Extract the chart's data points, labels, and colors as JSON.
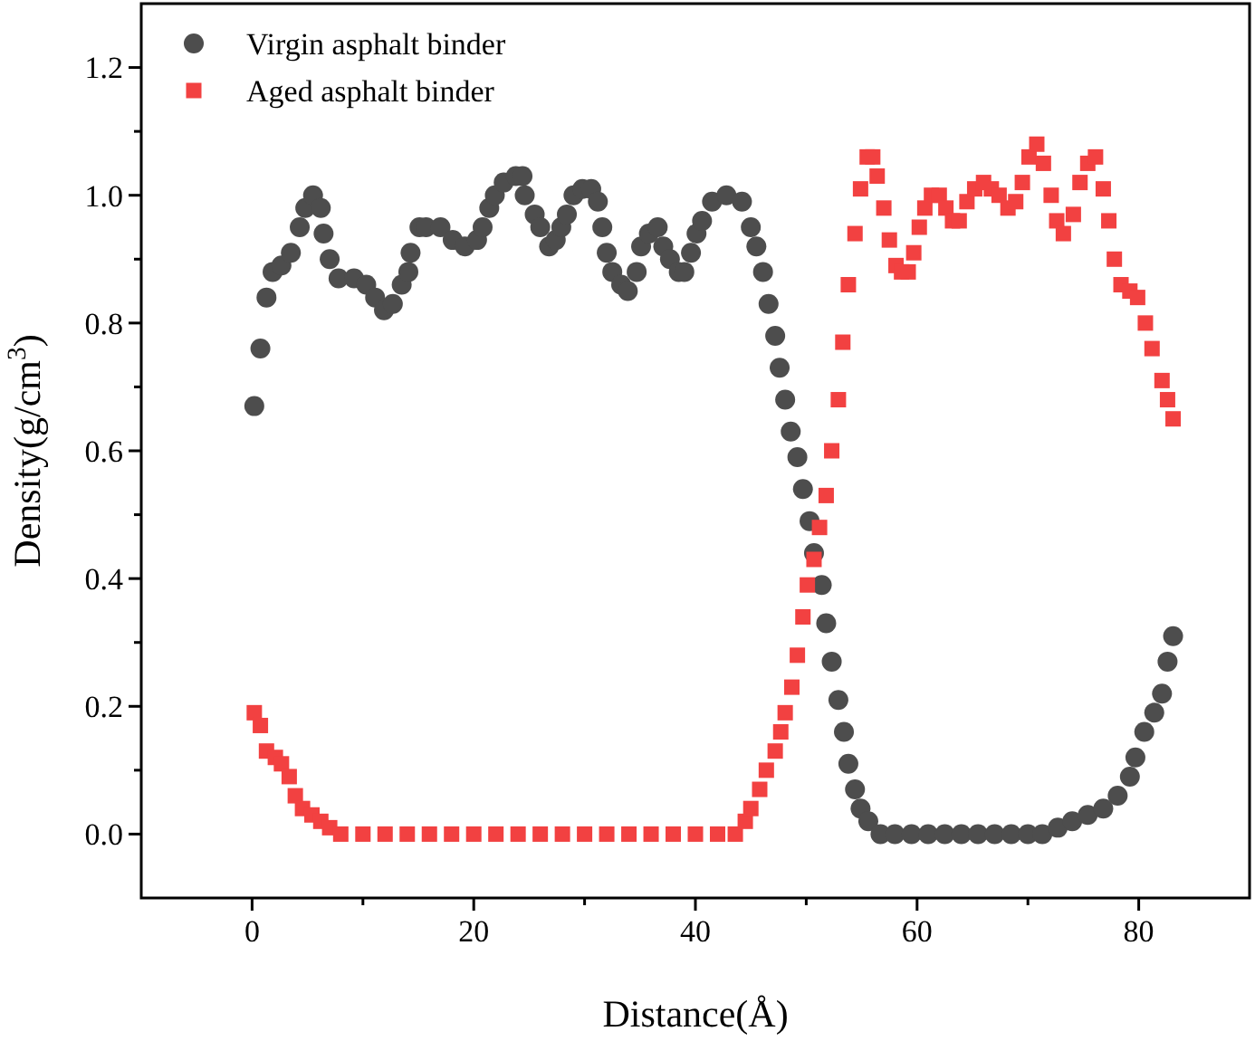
{
  "chart_data": {
    "type": "scatter",
    "xlabel": "Distance(Å)",
    "ylabel": "Density(g/cm$^{3}$)",
    "xlim": [
      -10,
      90
    ],
    "xticks": [
      0,
      20,
      40,
      60,
      80
    ],
    "ylim": [
      -0.1,
      1.3
    ],
    "yticks": [
      {
        "value": 0,
        "label": "0.0"
      },
      {
        "value": 0.2,
        "label": "0.2"
      },
      {
        "value": 0.4,
        "label": "0.4"
      },
      {
        "value": 0.6,
        "label": "0.6"
      },
      {
        "value": 0.8,
        "label": "0.8"
      },
      {
        "value": 1,
        "label": "1.0"
      },
      {
        "value": 1.2,
        "label": "1.2"
      }
    ],
    "grid": false,
    "legend": "top left",
    "series": [
      {
        "name": "Virgin asphalt binder",
        "color": "#4d4d4d",
        "marker": "circle",
        "x": [
          0.2,
          0.75,
          1.3,
          1.85,
          2.65,
          3.5,
          4.3,
          4.8,
          5.5,
          6.2,
          6.45,
          7.0,
          7.8,
          9.2,
          10.3,
          11.1,
          11.9,
          12.7,
          13.5,
          14.1,
          14.3,
          15.1,
          15.7,
          17.0,
          18.1,
          19.2,
          20.3,
          20.8,
          21.4,
          21.9,
          22.7,
          23.8,
          24.4,
          24.6,
          25.5,
          26.0,
          26.8,
          27.4,
          27.9,
          28.4,
          29.0,
          29.8,
          30.6,
          31.2,
          31.6,
          32.0,
          32.5,
          33.3,
          33.9,
          34.7,
          35.1,
          35.8,
          36.6,
          37.1,
          37.7,
          38.5,
          39.0,
          39.6,
          40.1,
          40.6,
          41.5,
          42.8,
          44.2,
          45.0,
          45.5,
          46.1,
          46.6,
          47.2,
          47.6,
          48.1,
          48.6,
          49.2,
          49.7,
          50.3,
          50.7,
          51.4,
          51.8,
          52.3,
          52.9,
          53.4,
          53.8,
          54.4,
          54.9,
          55.6,
          56.7,
          58,
          59.5,
          61,
          62.5,
          64,
          65.5,
          67,
          68.5,
          70,
          71.3,
          72.7,
          74.0,
          75.4,
          76.8,
          78.1,
          79.2,
          79.7,
          80.5,
          81.4,
          82.1,
          82.6,
          83.1
        ],
        "values": [
          0.67,
          0.76,
          0.84,
          0.88,
          0.89,
          0.91,
          0.95,
          0.98,
          1.0,
          0.98,
          0.94,
          0.9,
          0.87,
          0.87,
          0.86,
          0.84,
          0.82,
          0.83,
          0.86,
          0.88,
          0.91,
          0.95,
          0.95,
          0.95,
          0.93,
          0.92,
          0.93,
          0.95,
          0.98,
          1.0,
          1.02,
          1.03,
          1.03,
          1.0,
          0.97,
          0.95,
          0.92,
          0.93,
          0.95,
          0.97,
          1.0,
          1.01,
          1.01,
          0.99,
          0.95,
          0.91,
          0.88,
          0.86,
          0.85,
          0.88,
          0.92,
          0.94,
          0.95,
          0.92,
          0.9,
          0.88,
          0.88,
          0.91,
          0.94,
          0.96,
          0.99,
          1.0,
          0.99,
          0.95,
          0.92,
          0.88,
          0.83,
          0.78,
          0.73,
          0.68,
          0.63,
          0.59,
          0.54,
          0.49,
          0.44,
          0.39,
          0.33,
          0.27,
          0.21,
          0.16,
          0.11,
          0.07,
          0.04,
          0.02,
          0,
          0,
          0,
          0,
          0,
          0,
          0,
          0,
          0,
          0,
          0,
          0.01,
          0.02,
          0.03,
          0.04,
          0.06,
          0.09,
          0.12,
          0.16,
          0.19,
          0.22,
          0.27,
          0.31
        ]
      },
      {
        "name": "Aged asphalt binder",
        "color": "#f24141",
        "marker": "square",
        "x": [
          0.2,
          0.75,
          1.3,
          2.1,
          2.65,
          3.35,
          3.9,
          4.55,
          5.4,
          6.2,
          7.0,
          8.0,
          10,
          12,
          14,
          16,
          18,
          20,
          22,
          24,
          26,
          28,
          30,
          32,
          34,
          36,
          38,
          40,
          42,
          43.6,
          44.5,
          45.0,
          45.8,
          46.4,
          47.2,
          47.7,
          48.1,
          48.7,
          49.2,
          49.7,
          50.1,
          50.7,
          51.2,
          51.8,
          52.3,
          52.9,
          53.3,
          53.8,
          54.4,
          54.9,
          55.5,
          56.0,
          56.4,
          57.0,
          57.5,
          58.1,
          58.6,
          59.2,
          59.7,
          60.2,
          60.7,
          61.3,
          62.0,
          62.6,
          63.2,
          63.8,
          64.5,
          65.2,
          66.0,
          66.7,
          67.4,
          68.2,
          68.9,
          69.5,
          70.1,
          70.8,
          71.4,
          72.1,
          72.6,
          73.2,
          74.1,
          74.7,
          75.4,
          76.1,
          76.8,
          77.3,
          77.8,
          78.4,
          79.2,
          79.9,
          80.6,
          81.2,
          82.1,
          82.6,
          83.1
        ],
        "values": [
          0.19,
          0.17,
          0.13,
          0.12,
          0.11,
          0.09,
          0.06,
          0.04,
          0.03,
          0.02,
          0.01,
          0,
          0,
          0,
          0,
          0,
          0,
          0,
          0,
          0,
          0,
          0,
          0,
          0,
          0,
          0,
          0,
          0,
          0,
          0,
          0.02,
          0.04,
          0.07,
          0.1,
          0.13,
          0.16,
          0.19,
          0.23,
          0.28,
          0.34,
          0.39,
          0.43,
          0.48,
          0.53,
          0.6,
          0.68,
          0.77,
          0.86,
          0.94,
          1.01,
          1.06,
          1.06,
          1.03,
          0.98,
          0.93,
          0.89,
          0.88,
          0.88,
          0.91,
          0.95,
          0.98,
          1.0,
          1.0,
          0.98,
          0.96,
          0.96,
          0.99,
          1.01,
          1.02,
          1.01,
          1.0,
          0.98,
          0.99,
          1.02,
          1.06,
          1.08,
          1.05,
          1.0,
          0.96,
          0.94,
          0.97,
          1.02,
          1.05,
          1.06,
          1.01,
          0.96,
          0.9,
          0.86,
          0.85,
          0.84,
          0.8,
          0.76,
          0.71,
          0.68,
          0.65
        ]
      }
    ]
  }
}
